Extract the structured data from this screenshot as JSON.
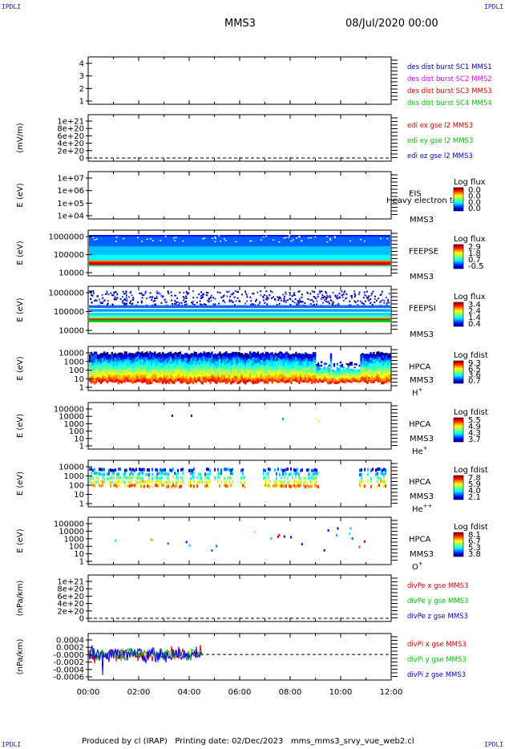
{
  "header": {
    "corner_label": "IPDLI",
    "title": "MMS3",
    "date": "08/Jul/2020 00:00"
  },
  "footer": {
    "text": "Produced by cl (IRAP)   Printing date: 02/Dec/2023   mms_mms3_srvy_vue_web2.cl"
  },
  "colors": {
    "mms1": "#0000c0",
    "mms2": "#e000e0",
    "mms3": "#d00000",
    "mms4": "#00c000"
  },
  "chart_data": {
    "type": "multi-panel",
    "x_ticks": [
      "00:00",
      "02:00",
      "04:00",
      "06:00",
      "08:00",
      "10:00",
      "12:00"
    ],
    "panels": [
      {
        "id": "des-dist",
        "type": "line",
        "ylabel": "",
        "y_ticks": [
          "1",
          "2",
          "3",
          "4"
        ],
        "legend": [
          {
            "label": "des dist burst SC1 MMS1",
            "color": "#0000c0"
          },
          {
            "label": "des dist burst SC2 MMS2",
            "color": "#e000e0"
          },
          {
            "label": "des dist burst SC3 MMS3",
            "color": "#d00000"
          },
          {
            "label": "des dist burst SC4 MMS4",
            "color": "#00c000"
          }
        ]
      },
      {
        "id": "edi-e",
        "type": "line",
        "ylabel": "(mV/m)",
        "y_ticks": [
          "0",
          "2e+20",
          "4e+20",
          "6e+20",
          "8e+20",
          "1e+21"
        ],
        "legend": [
          {
            "label": "edi ex gse l2 MMS3",
            "color": "#d00000"
          },
          {
            "label": "edi ey gse l2 MMS3",
            "color": "#00c000"
          },
          {
            "label": "edi ez gse l2 MMS3",
            "color": "#0000c0"
          }
        ]
      },
      {
        "id": "eis",
        "type": "heatmap",
        "ylabel": "E (eV)",
        "y_ticks": [
          "1e+04",
          "1e+05",
          "1e+06",
          "1e+07"
        ],
        "instrument": "EIS",
        "overlay": "Heavy electron to",
        "spacecraft": "MMS3",
        "colorbar": {
          "title": "Log flux",
          "ticks": [
            "0.0",
            "0.0",
            "0.0",
            "0.0"
          ]
        }
      },
      {
        "id": "feepse",
        "type": "heatmap",
        "ylabel": "E (eV)",
        "y_ticks": [
          "10000",
          "100000",
          "1000000"
        ],
        "instrument": "FEEPSE",
        "spacecraft": "MMS3",
        "colorbar": {
          "title": "Log flux",
          "ticks": [
            "2.9",
            "1.8",
            "0.7",
            "-0.5"
          ]
        }
      },
      {
        "id": "feepsi",
        "type": "heatmap",
        "ylabel": "E (eV)",
        "y_ticks": [
          "10000",
          "100000",
          "1000000"
        ],
        "instrument": "FEEPSI",
        "spacecraft": "MMS3",
        "colorbar": {
          "title": "Log flux",
          "ticks": [
            "3.4",
            "2.4",
            "1.4",
            "0.4"
          ]
        }
      },
      {
        "id": "hpca-h",
        "type": "heatmap",
        "ylabel": "E (eV)",
        "y_ticks": [
          "1",
          "10",
          "100",
          "1000",
          "10000"
        ],
        "instrument": "HPCA",
        "spacecraft": "MMS3",
        "species": "H",
        "charge": "+",
        "colorbar": {
          "title": "Log fdist",
          "ticks": [
            "9.3",
            "6.5",
            "3.6",
            "0.7"
          ]
        }
      },
      {
        "id": "hpca-he",
        "type": "heatmap",
        "ylabel": "E (eV)",
        "y_ticks": [
          "1",
          "10",
          "100",
          "1000",
          "10000",
          "100000"
        ],
        "instrument": "HPCA",
        "spacecraft": "MMS3",
        "species": "He",
        "charge": "+",
        "colorbar": {
          "title": "Log fdist",
          "ticks": [
            "5.5",
            "4.9",
            "4.3",
            "3.7"
          ]
        }
      },
      {
        "id": "hpca-he2",
        "type": "heatmap",
        "ylabel": "E (eV)",
        "y_ticks": [
          "1",
          "10",
          "100",
          "1000",
          "10000"
        ],
        "instrument": "HPCA",
        "spacecraft": "MMS3",
        "species": "He",
        "charge": "++",
        "colorbar": {
          "title": "Log fdist",
          "ticks": [
            "7.8",
            "5.9",
            "4.0",
            "2.1"
          ]
        }
      },
      {
        "id": "hpca-o",
        "type": "heatmap",
        "ylabel": "E (eV)",
        "y_ticks": [
          "1",
          "10",
          "100",
          "1000",
          "10000",
          "100000"
        ],
        "instrument": "HPCA",
        "spacecraft": "MMS3",
        "species": "O",
        "charge": "+",
        "colorbar": {
          "title": "Log fdist",
          "ticks": [
            "8.1",
            "6.7",
            "5.3",
            "3.8"
          ]
        }
      },
      {
        "id": "divpe",
        "type": "line",
        "ylabel": "(nPa/km)",
        "y_ticks": [
          "0",
          "2e+20",
          "4e+20",
          "6e+20",
          "8e+20",
          "1e+21"
        ],
        "legend": [
          {
            "label": "divPe x gse MMS3",
            "color": "#d00000"
          },
          {
            "label": "divPe y gse MMS3",
            "color": "#00c000"
          },
          {
            "label": "divPe z gse MMS3",
            "color": "#0000c0"
          }
        ]
      },
      {
        "id": "divpi",
        "type": "line",
        "ylabel": "(nPa/km)",
        "y_ticks": [
          "-0.0006",
          "-0.0004",
          "-0.0002",
          "-0.0000",
          "0.0002",
          "0.0004"
        ],
        "legend": [
          {
            "label": "divPi x gse MMS3",
            "color": "#d00000"
          },
          {
            "label": "divPi y gse MMS3",
            "color": "#00c000"
          },
          {
            "label": "divPi z gse MMS3",
            "color": "#0000c0"
          }
        ]
      }
    ]
  }
}
